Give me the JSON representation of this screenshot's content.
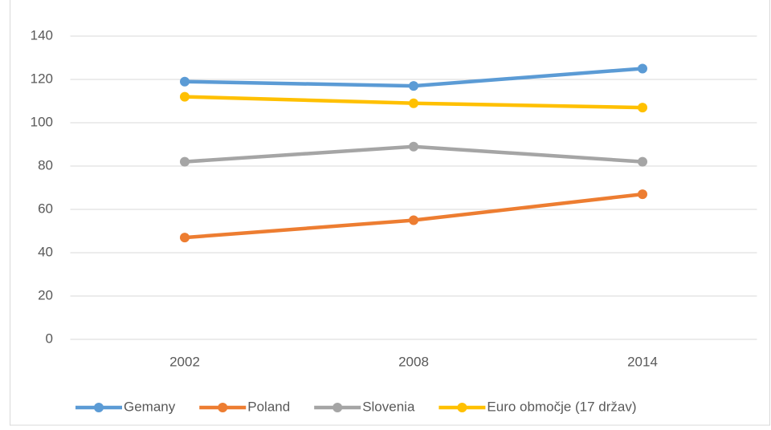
{
  "chart_data": {
    "type": "line",
    "categories": [
      "2002",
      "2008",
      "2014"
    ],
    "series": [
      {
        "name": "Gemany",
        "color": "#5b9bd5",
        "values": [
          119,
          117,
          125
        ]
      },
      {
        "name": "Poland",
        "color": "#ed7d31",
        "values": [
          47,
          55,
          67
        ]
      },
      {
        "name": "Slovenia",
        "color": "#a5a5a5",
        "values": [
          82,
          89,
          82
        ]
      },
      {
        "name": "Euro območje (17 držav)",
        "color": "#ffc000",
        "values": [
          112,
          109,
          107
        ]
      }
    ],
    "ylim": [
      0,
      140
    ],
    "yticks": [
      0,
      20,
      40,
      60,
      80,
      100,
      120,
      140
    ],
    "grid": true,
    "legend": "bottom"
  }
}
